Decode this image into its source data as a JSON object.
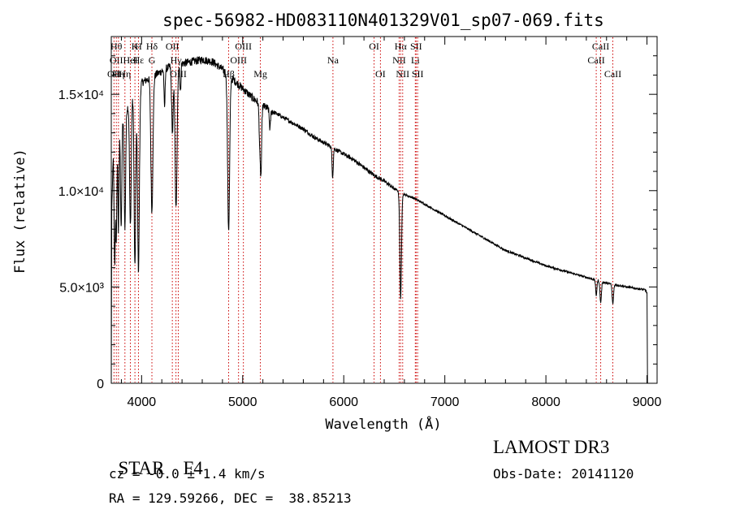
{
  "chart_data": {
    "type": "line",
    "title": "spec-56982-HD083110N401329V01_sp07-069.fits",
    "xlabel": "Wavelength (Å)",
    "ylabel": "Flux (relative)",
    "xlim": [
      3700,
      9100
    ],
    "ylim": [
      0,
      18000
    ],
    "x_ticks": [
      {
        "value": 4000,
        "label": "4000"
      },
      {
        "value": 5000,
        "label": "5000"
      },
      {
        "value": 6000,
        "label": "6000"
      },
      {
        "value": 7000,
        "label": "7000"
      },
      {
        "value": 8000,
        "label": "8000"
      },
      {
        "value": 9000,
        "label": "9000"
      }
    ],
    "y_ticks": [
      {
        "value": 0,
        "label": "0"
      },
      {
        "value": 5000,
        "label": "5.0×10³"
      },
      {
        "value": 10000,
        "label": "1.0×10⁴"
      },
      {
        "value": 15000,
        "label": "1.5×10⁴"
      }
    ],
    "series": [
      {
        "name": "spectrum",
        "continuum": [
          [
            3700,
            0
          ],
          [
            3705,
            9000
          ],
          [
            3720,
            12000
          ],
          [
            3760,
            12500
          ],
          [
            3800,
            13500
          ],
          [
            3850,
            14200
          ],
          [
            3900,
            14800
          ],
          [
            3950,
            15200
          ],
          [
            4000,
            15600
          ],
          [
            4100,
            15900
          ],
          [
            4200,
            16200
          ],
          [
            4300,
            16500
          ],
          [
            4400,
            16600
          ],
          [
            4500,
            16700
          ],
          [
            4600,
            16800
          ],
          [
            4700,
            16700
          ],
          [
            4800,
            16300
          ],
          [
            4900,
            15800
          ],
          [
            5000,
            15300
          ],
          [
            5100,
            14800
          ],
          [
            5200,
            14400
          ],
          [
            5300,
            14100
          ],
          [
            5400,
            13800
          ],
          [
            5500,
            13500
          ],
          [
            5600,
            13200
          ],
          [
            5700,
            12800
          ],
          [
            5800,
            12500
          ],
          [
            5900,
            12200
          ],
          [
            6000,
            11900
          ],
          [
            6100,
            11600
          ],
          [
            6200,
            11200
          ],
          [
            6300,
            10800
          ],
          [
            6400,
            10500
          ],
          [
            6500,
            10100
          ],
          [
            6600,
            9800
          ],
          [
            6700,
            9600
          ],
          [
            6800,
            9300
          ],
          [
            6900,
            9000
          ],
          [
            7000,
            8700
          ],
          [
            7200,
            8100
          ],
          [
            7400,
            7500
          ],
          [
            7600,
            6900
          ],
          [
            7800,
            6500
          ],
          [
            8000,
            6100
          ],
          [
            8200,
            5800
          ],
          [
            8400,
            5500
          ],
          [
            8600,
            5200
          ],
          [
            8800,
            5000
          ],
          [
            8980,
            4850
          ],
          [
            9000,
            4700
          ],
          [
            9005,
            0
          ]
        ],
        "absorption": [
          {
            "center": 3734,
            "depth": 6000,
            "width": 6
          },
          {
            "center": 3750,
            "depth": 5000,
            "width": 5
          },
          {
            "center": 3771,
            "depth": 5000,
            "width": 5
          },
          {
            "center": 3798,
            "depth": 5500,
            "width": 6
          },
          {
            "center": 3835,
            "depth": 6000,
            "width": 7
          },
          {
            "center": 3889,
            "depth": 6500,
            "width": 8
          },
          {
            "center": 3934,
            "depth": 9000,
            "width": 8
          },
          {
            "center": 3969,
            "depth": 9500,
            "width": 9
          },
          {
            "center": 4102,
            "depth": 7000,
            "width": 10
          },
          {
            "center": 4227,
            "depth": 2000,
            "width": 5
          },
          {
            "center": 4305,
            "depth": 3500,
            "width": 8
          },
          {
            "center": 4341,
            "depth": 7500,
            "width": 10
          },
          {
            "center": 4384,
            "depth": 1500,
            "width": 5
          },
          {
            "center": 4861,
            "depth": 8000,
            "width": 10
          },
          {
            "center": 5172,
            "depth": 2500,
            "width": 8
          },
          {
            "center": 5183,
            "depth": 2500,
            "width": 6
          },
          {
            "center": 5270,
            "depth": 1000,
            "width": 6
          },
          {
            "center": 5890,
            "depth": 1500,
            "width": 6
          },
          {
            "center": 6563,
            "depth": 5500,
            "width": 8
          },
          {
            "center": 8498,
            "depth": 800,
            "width": 6
          },
          {
            "center": 8542,
            "depth": 1100,
            "width": 7
          },
          {
            "center": 8662,
            "depth": 1000,
            "width": 7
          }
        ]
      }
    ],
    "reference_lines": [
      {
        "wavelength": 3727,
        "label": "OII",
        "row": 3
      },
      {
        "wavelength": 3750,
        "label": "Hθ",
        "row": 1
      },
      {
        "wavelength": 3750,
        "label": "OII",
        "row": 2
      },
      {
        "wavelength": 3771,
        "label": "Hη",
        "row": 3
      },
      {
        "wavelength": 3835,
        "label": "Hη",
        "row": 3
      },
      {
        "wavelength": 3889,
        "label": "HeI",
        "row": 2
      },
      {
        "wavelength": 3934,
        "label": "K",
        "row": 1
      },
      {
        "wavelength": 3969,
        "label": "H",
        "row": 1
      },
      {
        "wavelength": 3969,
        "label": "Hε",
        "row": 2
      },
      {
        "wavelength": 4102,
        "label": "Hδ",
        "row": 1
      },
      {
        "wavelength": 4102,
        "label": "G",
        "row": 2
      },
      {
        "wavelength": 4304,
        "label": "OII",
        "row": 1
      },
      {
        "wavelength": 4340,
        "label": "Hγ",
        "row": 2
      },
      {
        "wavelength": 4363,
        "label": "OIII",
        "row": 3
      },
      {
        "wavelength": 4861,
        "label": "Hβ",
        "row": 3
      },
      {
        "wavelength": 4959,
        "label": "OIII",
        "row": 2
      },
      {
        "wavelength": 5007,
        "label": "OIII",
        "row": 1
      },
      {
        "wavelength": 5175,
        "label": "Mg",
        "row": 3
      },
      {
        "wavelength": 5893,
        "label": "Na",
        "row": 2
      },
      {
        "wavelength": 6300,
        "label": "OI",
        "row": 1
      },
      {
        "wavelength": 6363,
        "label": "OI",
        "row": 3
      },
      {
        "wavelength": 6548,
        "label": "NII",
        "row": 2
      },
      {
        "wavelength": 6563,
        "label": "Hα",
        "row": 1
      },
      {
        "wavelength": 6583,
        "label": "NII",
        "row": 3
      },
      {
        "wavelength": 6708,
        "label": "Li",
        "row": 2
      },
      {
        "wavelength": 6716,
        "label": "SII",
        "row": 1
      },
      {
        "wavelength": 6731,
        "label": "SII",
        "row": 3
      },
      {
        "wavelength": 8498,
        "label": "CaII",
        "row": 2
      },
      {
        "wavelength": 8542,
        "label": "CaII",
        "row": 1
      },
      {
        "wavelength": 8662,
        "label": "CaII",
        "row": 3
      }
    ]
  },
  "info": {
    "class_label": "STAR",
    "subclass": "F4",
    "survey": "LAMOST DR3",
    "redshift_line": "cz = -0.0 ± 1.4 km/s",
    "obs_date_line": "Obs-Date: 20141120",
    "coords_line": "RA = 129.59266, DEC =  38.85213"
  },
  "colors": {
    "spectrum": "#000000",
    "reference_line": "#cc0000",
    "axis": "#000000",
    "background": "#ffffff"
  }
}
